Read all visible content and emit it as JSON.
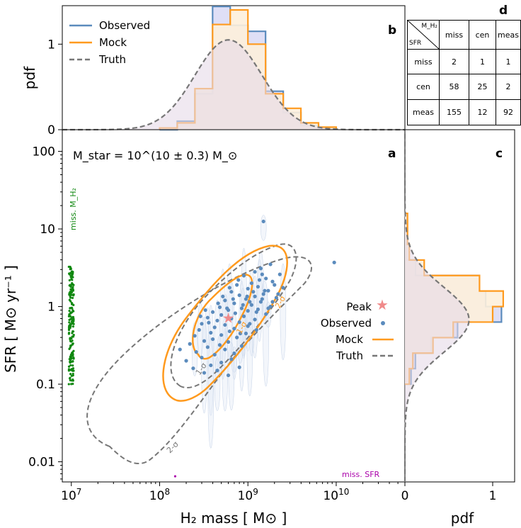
{
  "chart_data": {
    "panels": {
      "a": {
        "type": "scatter",
        "label": "a",
        "annotation": "M_star = 10^(10 ± 0.3) M_⊙",
        "xlabel": "H₂ mass [ M⊙ ]",
        "ylabel": "SFR [ M⊙ yr⁻¹ ]",
        "xscale": "log",
        "yscale": "log",
        "xlim": [
          7900000.0,
          60000000000.0
        ],
        "ylim": [
          0.0055,
          190
        ],
        "xticks": [
          {
            "v": 10000000.0,
            "e": "7"
          },
          {
            "v": 100000000.0,
            "e": "8"
          },
          {
            "v": 1000000000.0,
            "e": "9"
          },
          {
            "v": 10000000000.0,
            "e": "10"
          }
        ],
        "yticks": [
          {
            "v": 0.01,
            "t": "0.01"
          },
          {
            "v": 0.1,
            "t": "0.1"
          },
          {
            "v": 1,
            "t": "1"
          },
          {
            "v": 10,
            "t": "10"
          },
          {
            "v": 100,
            "t": "100"
          }
        ],
        "peak": {
          "x": 600000000.0,
          "y": 0.7
        },
        "observed": [
          [
            1500000000.0,
            12.5
          ],
          [
            9500000000.0,
            3.7
          ],
          [
            1800000000.0,
            3.5
          ],
          [
            1400000000.0,
            3.1
          ],
          [
            1200000000.0,
            2.8
          ],
          [
            2300000000.0,
            2.6
          ],
          [
            900000000.0,
            2.5
          ],
          [
            1600000000.0,
            2.3
          ],
          [
            1900000000.0,
            2.1
          ],
          [
            1100000000.0,
            2.0
          ],
          [
            750000000.0,
            1.9
          ],
          [
            1300000000.0,
            1.8
          ],
          [
            2500000000.0,
            1.75
          ],
          [
            1000000000.0,
            1.7
          ],
          [
            1700000000.0,
            1.6
          ],
          [
            650000000.0,
            1.55
          ],
          [
            1500000000.0,
            1.45
          ],
          [
            800000000.0,
            1.4
          ],
          [
            1200000000.0,
            1.35
          ],
          [
            2100000000.0,
            1.3
          ],
          [
            950000000.0,
            1.25
          ],
          [
            550000000.0,
            1.2
          ],
          [
            1400000000.0,
            1.15
          ],
          [
            700000000.0,
            1.1
          ],
          [
            1100000000.0,
            1.05
          ],
          [
            1800000000.0,
            1.0
          ],
          [
            480000000.0,
            0.98
          ],
          [
            850000000.0,
            0.95
          ],
          [
            1300000000.0,
            0.92
          ],
          [
            600000000.0,
            0.9
          ],
          [
            1000000000.0,
            0.88
          ],
          [
            400000000.0,
            0.85
          ],
          [
            720000000.0,
            0.82
          ],
          [
            1600000000.0,
            0.8
          ],
          [
            500000000.0,
            0.78
          ],
          [
            900000000.0,
            0.75
          ],
          [
            350000000.0,
            0.72
          ],
          [
            650000000.0,
            0.7
          ],
          [
            1200000000.0,
            0.68
          ],
          [
            450000000.0,
            0.66
          ],
          [
            800000000.0,
            0.63
          ],
          [
            300000000.0,
            0.6
          ],
          [
            550000000.0,
            0.58
          ],
          [
            1000000000.0,
            0.56
          ],
          [
            420000000.0,
            0.54
          ],
          [
            700000000.0,
            0.52
          ],
          [
            280000000.0,
            0.5
          ],
          [
            620000000.0,
            0.48
          ],
          [
            380000000.0,
            0.46
          ],
          [
            950000000.0,
            0.45
          ],
          [
            500000000.0,
            0.43
          ],
          [
            250000000.0,
            0.42
          ],
          [
            750000000.0,
            0.4
          ],
          [
            400000000.0,
            0.38
          ],
          [
            320000000.0,
            0.36
          ],
          [
            600000000.0,
            0.35
          ],
          [
            220000000.0,
            0.33
          ],
          [
            480000000.0,
            0.32
          ],
          [
            850000000.0,
            0.31
          ],
          [
            350000000.0,
            0.3
          ],
          [
            550000000.0,
            0.28
          ],
          [
            170000000.0,
            0.28
          ],
          [
            260000000.0,
            0.26
          ],
          [
            700000000.0,
            0.25
          ],
          [
            420000000.0,
            0.24
          ],
          [
            300000000.0,
            0.22
          ],
          [
            650000000.0,
            0.21
          ],
          [
            200000000.0,
            0.2
          ],
          [
            500000000.0,
            0.19
          ],
          [
            380000000.0,
            0.175
          ],
          [
            800000000.0,
            0.165
          ],
          [
            240000000.0,
            0.16
          ],
          [
            450000000.0,
            0.15
          ],
          [
            320000000.0,
            0.14
          ],
          [
            600000000.0,
            0.13
          ],
          [
            1050000000.0,
            0.6
          ],
          [
            1250000000.0,
            0.85
          ],
          [
            1450000000.0,
            1.25
          ],
          [
            1550000000.0,
            1.6
          ],
          [
            2000000000.0,
            1.9
          ],
          [
            1150000000.0,
            1.55
          ],
          [
            1350000000.0,
            2.2
          ],
          [
            980000000.0,
            1.35
          ],
          [
            1050000000.0,
            1.15
          ],
          [
            1700000000.0,
            0.95
          ],
          [
            2200000000.0,
            1.45
          ],
          [
            1900000000.0,
            1.15
          ],
          [
            880000000.0,
            1.05
          ],
          [
            680000000.0,
            1.25
          ],
          [
            580000000.0,
            0.95
          ],
          [
            520000000.0,
            1.35
          ],
          [
            460000000.0,
            1.1
          ],
          [
            360000000.0,
            0.62
          ],
          [
            290000000.0,
            0.75
          ],
          [
            330000000.0,
            0.9
          ],
          [
            780000000.0,
            2.2
          ],
          [
            620000000.0,
            1.75
          ],
          [
            1450000000.0,
            2.6
          ],
          [
            1250000000.0,
            0.5
          ],
          [
            820000000.0,
            0.45
          ]
        ],
        "missing_h2_band": {
          "x": 10000000.0,
          "ylo": 0.1,
          "yhi": 3.3
        },
        "missing_sfr_point": {
          "x": 150000000.0,
          "y": 0.0065
        },
        "contour_labels": {
          "mock_1": "1-σ",
          "mock_2": "2-σ",
          "truth_1": "1-σ",
          "truth_2": "2-σ"
        },
        "missing_h2_label": "miss. M_H₂",
        "missing_sfr_label": "miss. SFR",
        "legend": {
          "position": "right-middle",
          "entries": [
            "Peak",
            "Observed",
            "Mock",
            "Truth"
          ]
        }
      },
      "b": {
        "type": "histogram",
        "label": "b",
        "ylabel": "pdf",
        "ylim": [
          0,
          1.45
        ],
        "yticks": [
          0,
          1
        ],
        "edges_log10": [
          8.0,
          8.2,
          8.4,
          8.6,
          8.8,
          9.0,
          9.2,
          9.4,
          9.6,
          9.8,
          10.0
        ],
        "observed": [
          0.0,
          0.1,
          0.42,
          1.44,
          1.22,
          1.15,
          0.45,
          0.2,
          0.05,
          0.02
        ],
        "mock": [
          0.02,
          0.08,
          0.48,
          1.23,
          1.4,
          1.0,
          0.42,
          0.25,
          0.08,
          0.03
        ],
        "truth_curve": {
          "type": "lognormal",
          "mu": 8.78,
          "sigma": 0.38,
          "peak": 1.05
        },
        "legend": {
          "position": "top-left",
          "entries": [
            "Observed",
            "Mock",
            "Truth"
          ]
        }
      },
      "c": {
        "type": "histogram",
        "label": "c",
        "xlabel": "pdf",
        "xlim": [
          0,
          1.25
        ],
        "xticks": [
          0,
          1
        ],
        "edges_log10": [
          -1.0,
          -0.8,
          -0.6,
          -0.4,
          -0.2,
          0.0,
          0.2,
          0.4,
          0.6,
          0.8,
          1.0,
          1.2
        ],
        "observed": [
          0.07,
          0.12,
          0.3,
          0.6,
          1.1,
          0.92,
          0.85,
          0.12,
          0.02,
          0.02,
          0.02
        ],
        "mock": [
          0.05,
          0.09,
          0.32,
          0.55,
          1.0,
          1.12,
          0.85,
          0.22,
          0.05,
          0.03,
          0.03
        ],
        "truth_curve": {
          "type": "lognormal",
          "mu": -0.17,
          "sigma": 0.42,
          "peak": 0.73
        }
      }
    },
    "table_d": {
      "label": "d",
      "corner_top": "M_H₂",
      "corner_bottom": "SFR",
      "columns": [
        "miss",
        "cen",
        "meas"
      ],
      "rows": [
        {
          "label": "miss",
          "values": [
            2,
            1,
            1
          ]
        },
        {
          "label": "cen",
          "values": [
            58,
            25,
            2
          ]
        },
        {
          "label": "meas",
          "values": [
            155,
            12,
            92
          ]
        }
      ]
    }
  },
  "legend_labels": {
    "peak": "Peak",
    "observed": "Observed",
    "mock": "Mock",
    "truth": "Truth"
  },
  "colors": {
    "observed": "#5b8bbd",
    "mock": "#ff9a1e",
    "truth": "#777777",
    "fill_observed": "#dcdcf5",
    "fill_mock": "#fdf0dc",
    "fill_truth": "#e6dbe8",
    "peak": "#f08a8a",
    "missing_h2": "#118811",
    "missing_sfr": "#aa00aa",
    "errorbar": "#c5d3e8"
  }
}
